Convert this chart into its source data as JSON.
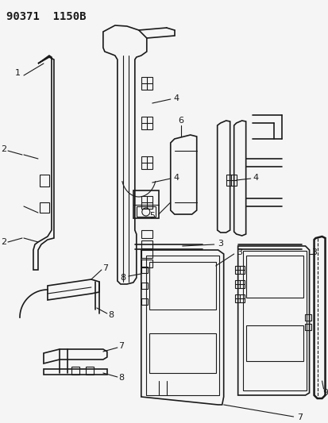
{
  "title": "90371  1150B",
  "bg_color": "#f5f5f5",
  "line_color": "#1a1a1a",
  "title_fontsize": 10,
  "label_fontsize": 8,
  "figsize": [
    4.14,
    5.33
  ],
  "dpi": 100
}
